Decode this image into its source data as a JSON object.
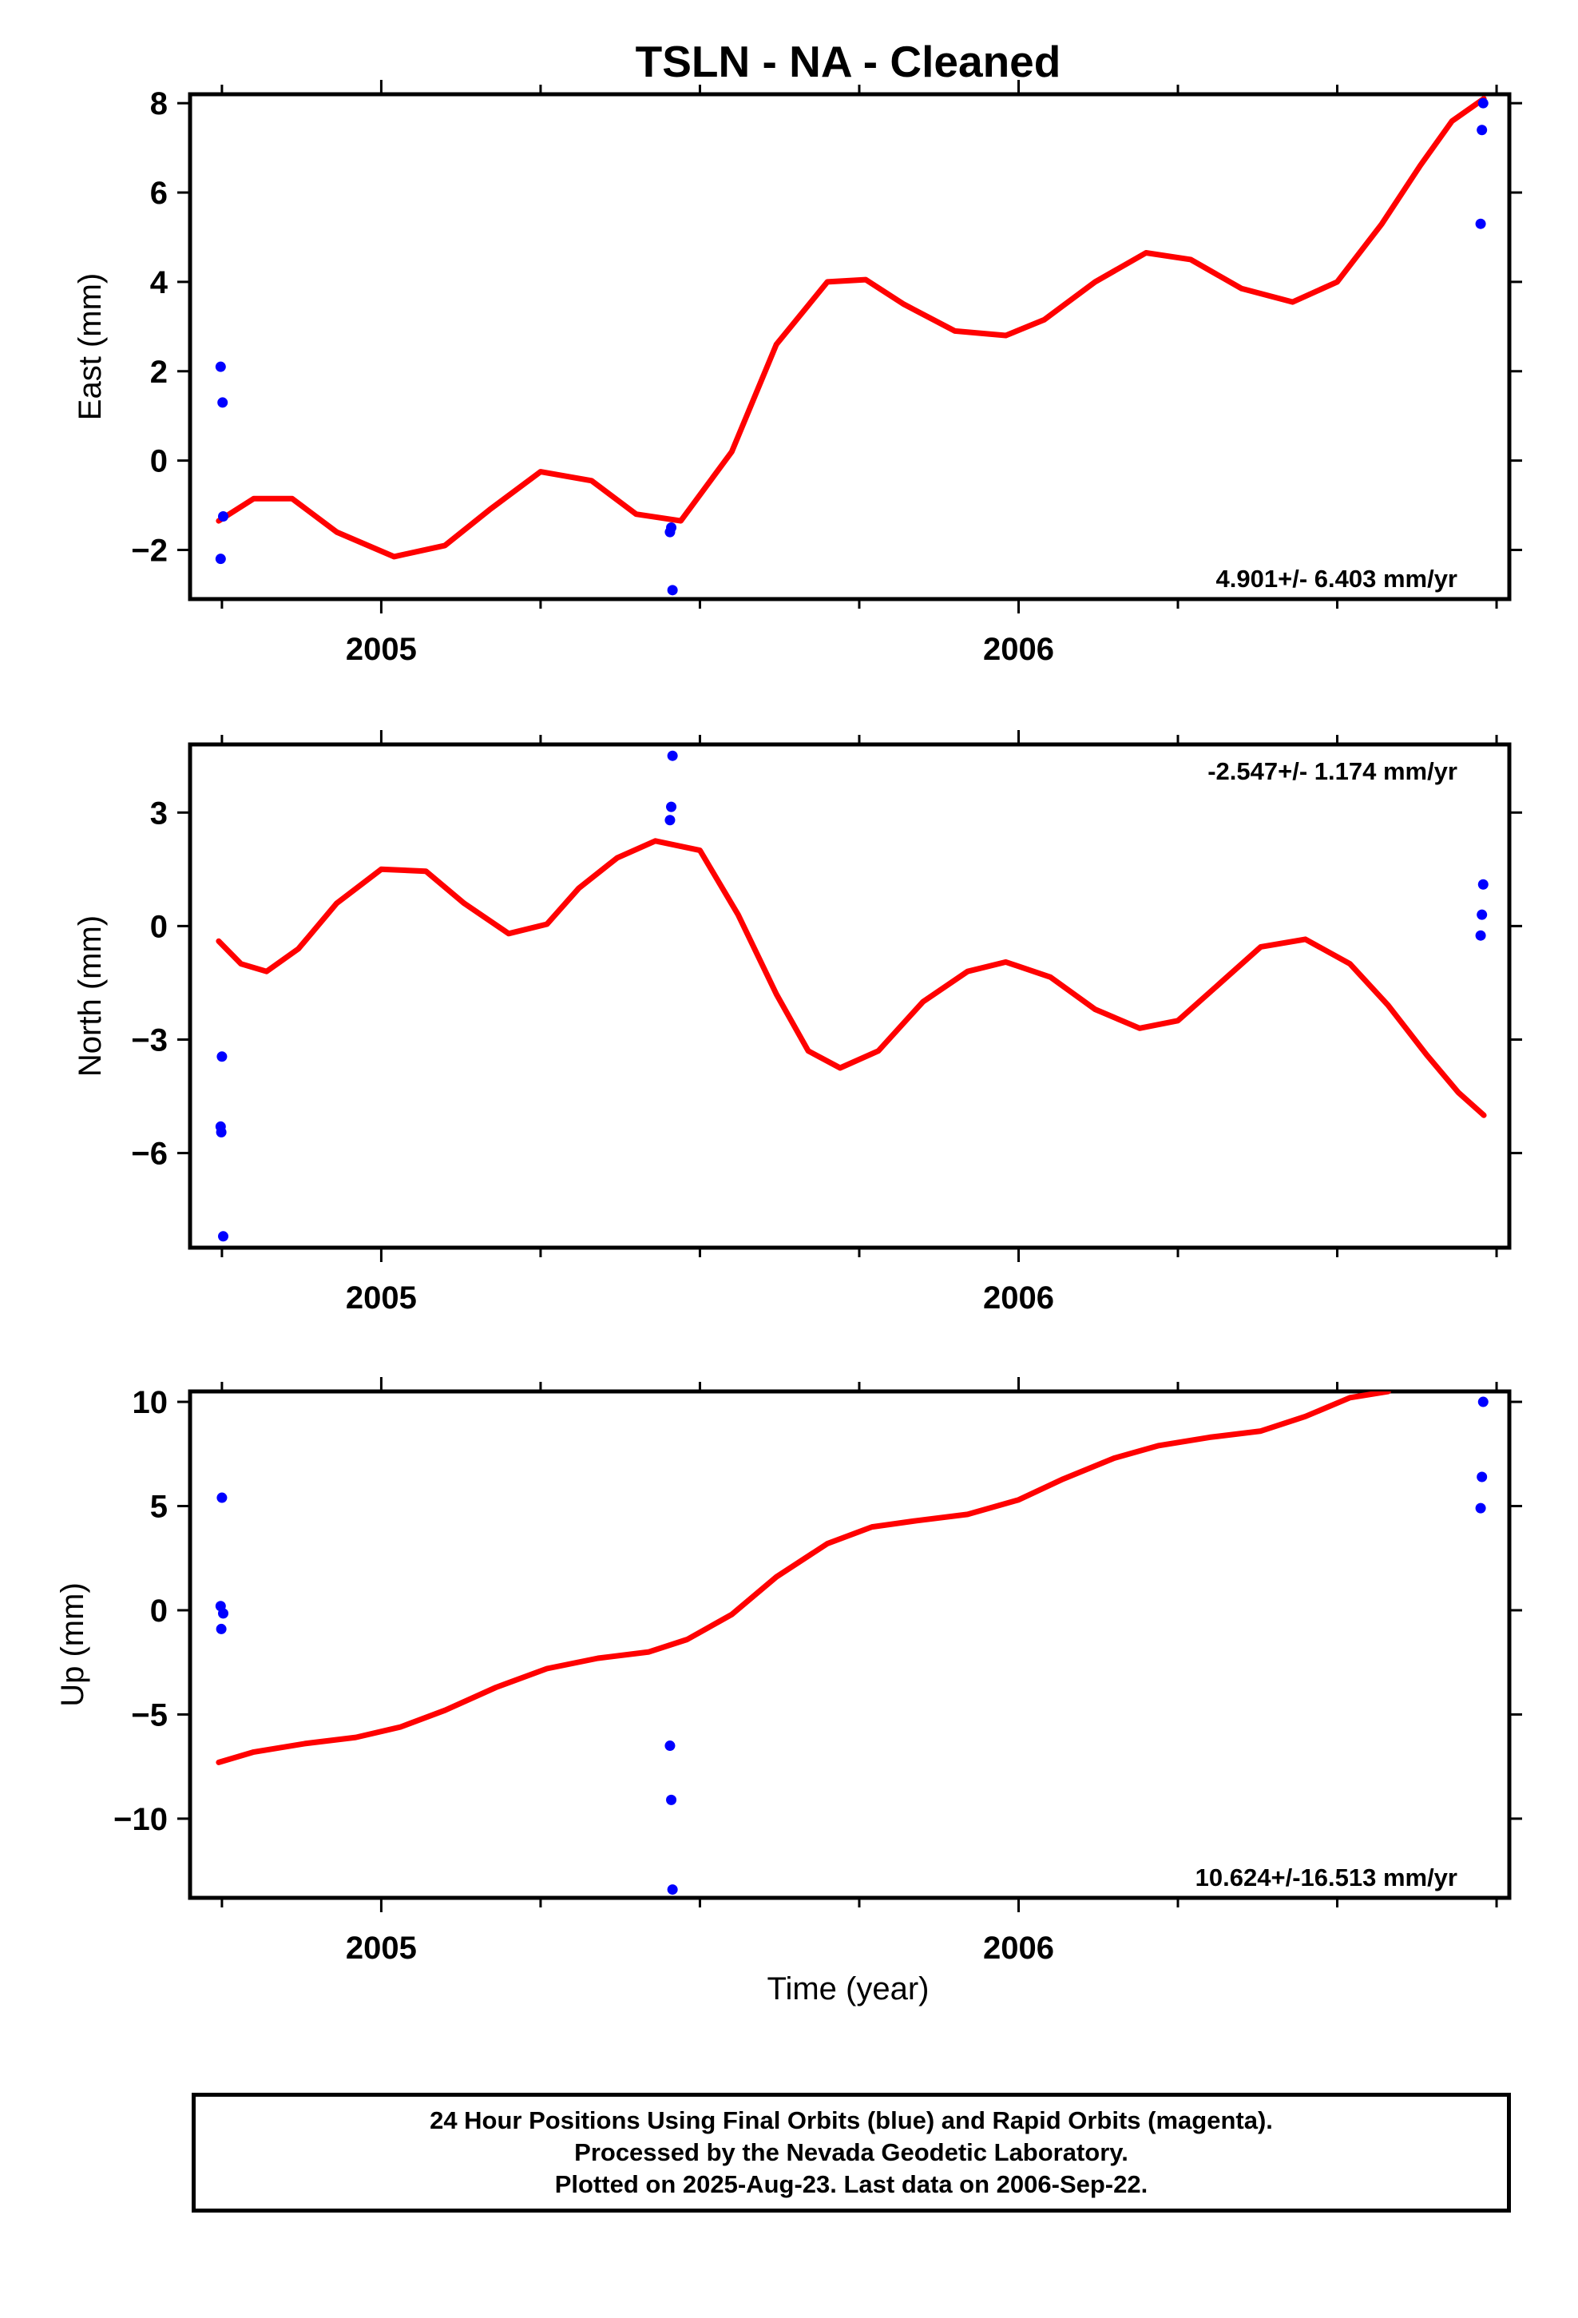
{
  "title": "TSLN  - NA - Cleaned",
  "xlabel": "Time (year)",
  "footer": {
    "line1": "24 Hour Positions Using Final Orbits (blue) and Rapid Orbits (magenta).",
    "line2": "Processed by the Nevada Geodetic Laboratory.",
    "line3": "Plotted on 2025-Aug-23. Last data on 2006-Sep-22."
  },
  "colors": {
    "final_orbits": "#0000ff",
    "model": "#ff0000",
    "frame": "#000000"
  },
  "chart_data": [
    {
      "type": "scatter",
      "panel": "east",
      "ylabel": "East (mm)",
      "xlim": [
        2004.7,
        2006.77
      ],
      "ylim": [
        -3.1,
        8.2
      ],
      "yticks": [
        -2,
        0,
        2,
        4,
        6,
        8
      ],
      "xticks": [
        2005,
        2006
      ],
      "rate": "4.901+/- 6.403 mm/yr",
      "rate_position": "bottom-right",
      "points": {
        "x": [
          2004.748,
          2004.751,
          2004.752,
          2004.748,
          2005.453,
          2005.455,
          2005.457,
          2006.725,
          2006.727,
          2006.729
        ],
        "y": [
          2.1,
          1.3,
          -1.25,
          -2.2,
          -1.6,
          -1.5,
          -2.9,
          5.3,
          7.4,
          8.0
        ]
      },
      "model": {
        "x": [
          2004.745,
          2004.8,
          2004.86,
          2004.93,
          2005.02,
          2005.1,
          2005.17,
          2005.25,
          2005.33,
          2005.4,
          2005.47,
          2005.55,
          2005.62,
          2005.7,
          2005.76,
          2005.82,
          2005.9,
          2005.98,
          2006.04,
          2006.12,
          2006.2,
          2006.27,
          2006.35,
          2006.43,
          2006.5,
          2006.57,
          2006.63,
          2006.68,
          2006.73
        ],
        "y": [
          -1.35,
          -0.85,
          -0.85,
          -1.6,
          -2.15,
          -1.9,
          -1.1,
          -0.25,
          -0.45,
          -1.2,
          -1.35,
          0.2,
          2.6,
          4.0,
          4.05,
          3.5,
          2.9,
          2.8,
          3.15,
          4.0,
          4.65,
          4.5,
          3.85,
          3.55,
          4.0,
          5.3,
          6.6,
          7.6,
          8.1
        ]
      }
    },
    {
      "type": "scatter",
      "panel": "north",
      "ylabel": "North (mm)",
      "xlim": [
        2004.7,
        2006.77
      ],
      "ylim": [
        -8.5,
        4.8
      ],
      "yticks": [
        -6,
        -3,
        0,
        3
      ],
      "xticks": [
        2005,
        2006
      ],
      "rate": "-2.547+/- 1.174 mm/yr",
      "rate_position": "top-right",
      "points": {
        "x": [
          2004.75,
          2004.748,
          2004.749,
          2004.752,
          2005.453,
          2005.455,
          2005.457,
          2006.725,
          2006.727,
          2006.729
        ],
        "y": [
          -3.45,
          -5.3,
          -5.45,
          -8.2,
          2.8,
          3.15,
          4.5,
          -0.25,
          0.3,
          1.1
        ]
      },
      "model": {
        "x": [
          2004.745,
          2004.78,
          2004.82,
          2004.87,
          2004.93,
          2005.0,
          2005.07,
          2005.13,
          2005.2,
          2005.26,
          2005.31,
          2005.37,
          2005.43,
          2005.5,
          2005.56,
          2005.62,
          2005.67,
          2005.72,
          2005.78,
          2005.85,
          2005.92,
          2005.98,
          2006.05,
          2006.12,
          2006.19,
          2006.25,
          2006.31,
          2006.38,
          2006.45,
          2006.52,
          2006.58,
          2006.64,
          2006.69,
          2006.73
        ],
        "y": [
          -0.4,
          -1.0,
          -1.2,
          -0.6,
          0.6,
          1.5,
          1.45,
          0.6,
          -0.2,
          0.05,
          1.0,
          1.8,
          2.25,
          2.0,
          0.3,
          -1.8,
          -3.3,
          -3.75,
          -3.3,
          -2.0,
          -1.2,
          -0.95,
          -1.35,
          -2.2,
          -2.7,
          -2.5,
          -1.6,
          -0.55,
          -0.35,
          -1.0,
          -2.1,
          -3.4,
          -4.4,
          -5.0
        ]
      }
    },
    {
      "type": "scatter",
      "panel": "up",
      "ylabel": "Up (mm)",
      "xlim": [
        2004.7,
        2006.77
      ],
      "ylim": [
        -13.8,
        10.5
      ],
      "yticks": [
        -10,
        -5,
        0,
        5,
        10
      ],
      "xticks": [
        2005,
        2006
      ],
      "rate": "10.624+/-16.513 mm/yr",
      "rate_position": "bottom-right",
      "points": {
        "x": [
          2004.75,
          2004.748,
          2004.749,
          2004.752,
          2005.453,
          2005.455,
          2005.457,
          2006.725,
          2006.727,
          2006.729
        ],
        "y": [
          5.4,
          0.2,
          -0.9,
          -0.15,
          -6.5,
          -9.1,
          -13.4,
          4.9,
          6.4,
          10.0
        ]
      },
      "model": {
        "x": [
          2004.745,
          2004.8,
          2004.88,
          2004.96,
          2005.03,
          2005.1,
          2005.18,
          2005.26,
          2005.34,
          2005.42,
          2005.48,
          2005.55,
          2005.62,
          2005.7,
          2005.77,
          2005.84,
          2005.92,
          2006.0,
          2006.07,
          2006.15,
          2006.22,
          2006.3,
          2006.38,
          2006.45,
          2006.52,
          2006.58
        ],
        "y": [
          -7.3,
          -6.8,
          -6.4,
          -6.1,
          -5.6,
          -4.8,
          -3.7,
          -2.8,
          -2.3,
          -2.0,
          -1.4,
          -0.2,
          1.6,
          3.2,
          4.0,
          4.3,
          4.6,
          5.3,
          6.3,
          7.3,
          7.9,
          8.3,
          8.6,
          9.3,
          10.2,
          10.5
        ]
      }
    }
  ]
}
